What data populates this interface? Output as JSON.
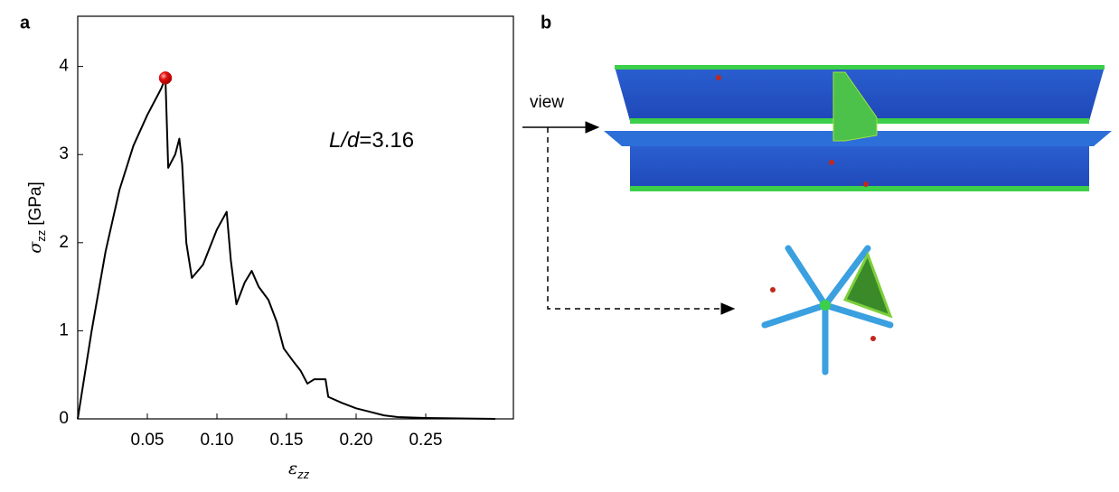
{
  "figure": {
    "panels": [
      "a",
      "b"
    ],
    "view_label": "view"
  },
  "chart_data": {
    "type": "line",
    "xlabel": {
      "symbol": "ε",
      "sub": "zz"
    },
    "ylabel": {
      "symbol": "σ",
      "sub": "zz",
      "unit": "[GPa]"
    },
    "annotation": {
      "italic": "L/d",
      "text": "=3.16"
    },
    "x": [
      0,
      0.01,
      0.02,
      0.03,
      0.04,
      0.05,
      0.06,
      0.063,
      0.065,
      0.07,
      0.073,
      0.075,
      0.078,
      0.082,
      0.09,
      0.1,
      0.107,
      0.11,
      0.114,
      0.12,
      0.125,
      0.13,
      0.137,
      0.143,
      0.148,
      0.155,
      0.16,
      0.165,
      0.17,
      0.178,
      0.18,
      0.19,
      0.2,
      0.21,
      0.22,
      0.23,
      0.25,
      0.3
    ],
    "series": [
      {
        "color": "#000000",
        "values": [
          0,
          1.0,
          1.9,
          2.6,
          3.1,
          3.45,
          3.75,
          3.87,
          2.85,
          3.0,
          3.18,
          2.9,
          2.0,
          1.6,
          1.75,
          2.15,
          2.35,
          1.8,
          1.3,
          1.55,
          1.68,
          1.5,
          1.35,
          1.1,
          0.8,
          0.65,
          0.55,
          0.4,
          0.45,
          0.45,
          0.25,
          0.18,
          0.12,
          0.08,
          0.04,
          0.02,
          0.01,
          0
        ]
      }
    ],
    "highlight": {
      "x": 0.063,
      "y": 3.87,
      "color": "#e01010"
    },
    "xlim": [
      0,
      0.313
    ],
    "ylim": [
      0,
      4.57
    ],
    "xticks": [
      0.05,
      {
        "value": 0.1,
        "label": "0.10"
      },
      0.15,
      {
        "value": 0.2,
        "label": "0.20"
      },
      0.25
    ],
    "yticks": [
      0,
      1,
      2,
      3,
      4
    ]
  }
}
